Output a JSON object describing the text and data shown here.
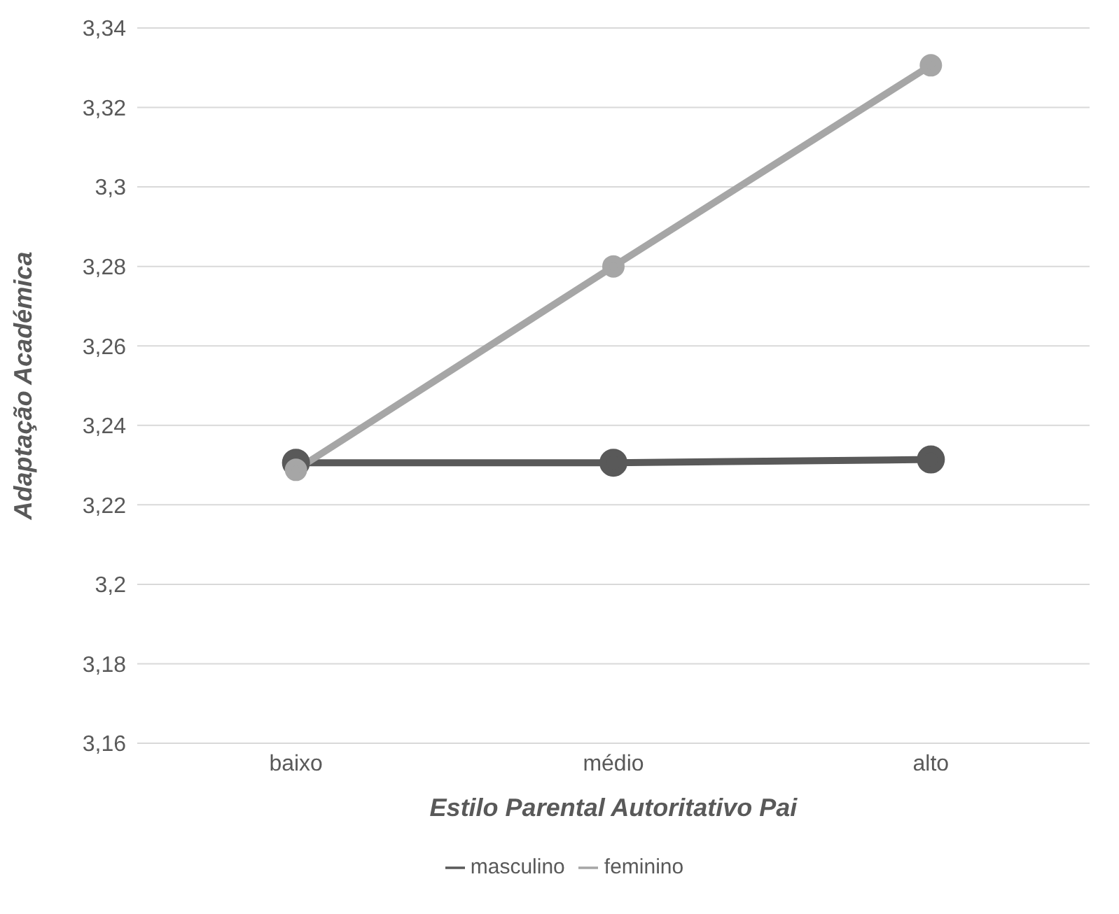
{
  "chart_data": {
    "type": "line",
    "xlabel": "Estilo Parental Autoritativo Pai",
    "ylabel": "Adaptação Académica",
    "categories": [
      "baixo",
      "médio",
      "alto"
    ],
    "series": [
      {
        "name": "masculino",
        "color": "#595959",
        "values": [
          3.2306,
          3.2306,
          3.2314
        ]
      },
      {
        "name": "feminino",
        "color": "#a6a6a6",
        "values": [
          3.2288,
          3.28,
          3.3306
        ]
      }
    ],
    "ylim": [
      3.16,
      3.34
    ],
    "yticks": [
      {
        "value": 3.16,
        "label": "3,16"
      },
      {
        "value": 3.18,
        "label": "3,18"
      },
      {
        "value": 3.2,
        "label": "3,2"
      },
      {
        "value": 3.22,
        "label": "3,22"
      },
      {
        "value": 3.24,
        "label": "3,24"
      },
      {
        "value": 3.26,
        "label": "3,26"
      },
      {
        "value": 3.28,
        "label": "3,28"
      },
      {
        "value": 3.3,
        "label": "3,3"
      },
      {
        "value": 3.32,
        "label": "3,32"
      },
      {
        "value": 3.34,
        "label": "3,34"
      }
    ],
    "grid": "y",
    "legend": "bottom",
    "marker": "circle",
    "line_style": "solid"
  }
}
